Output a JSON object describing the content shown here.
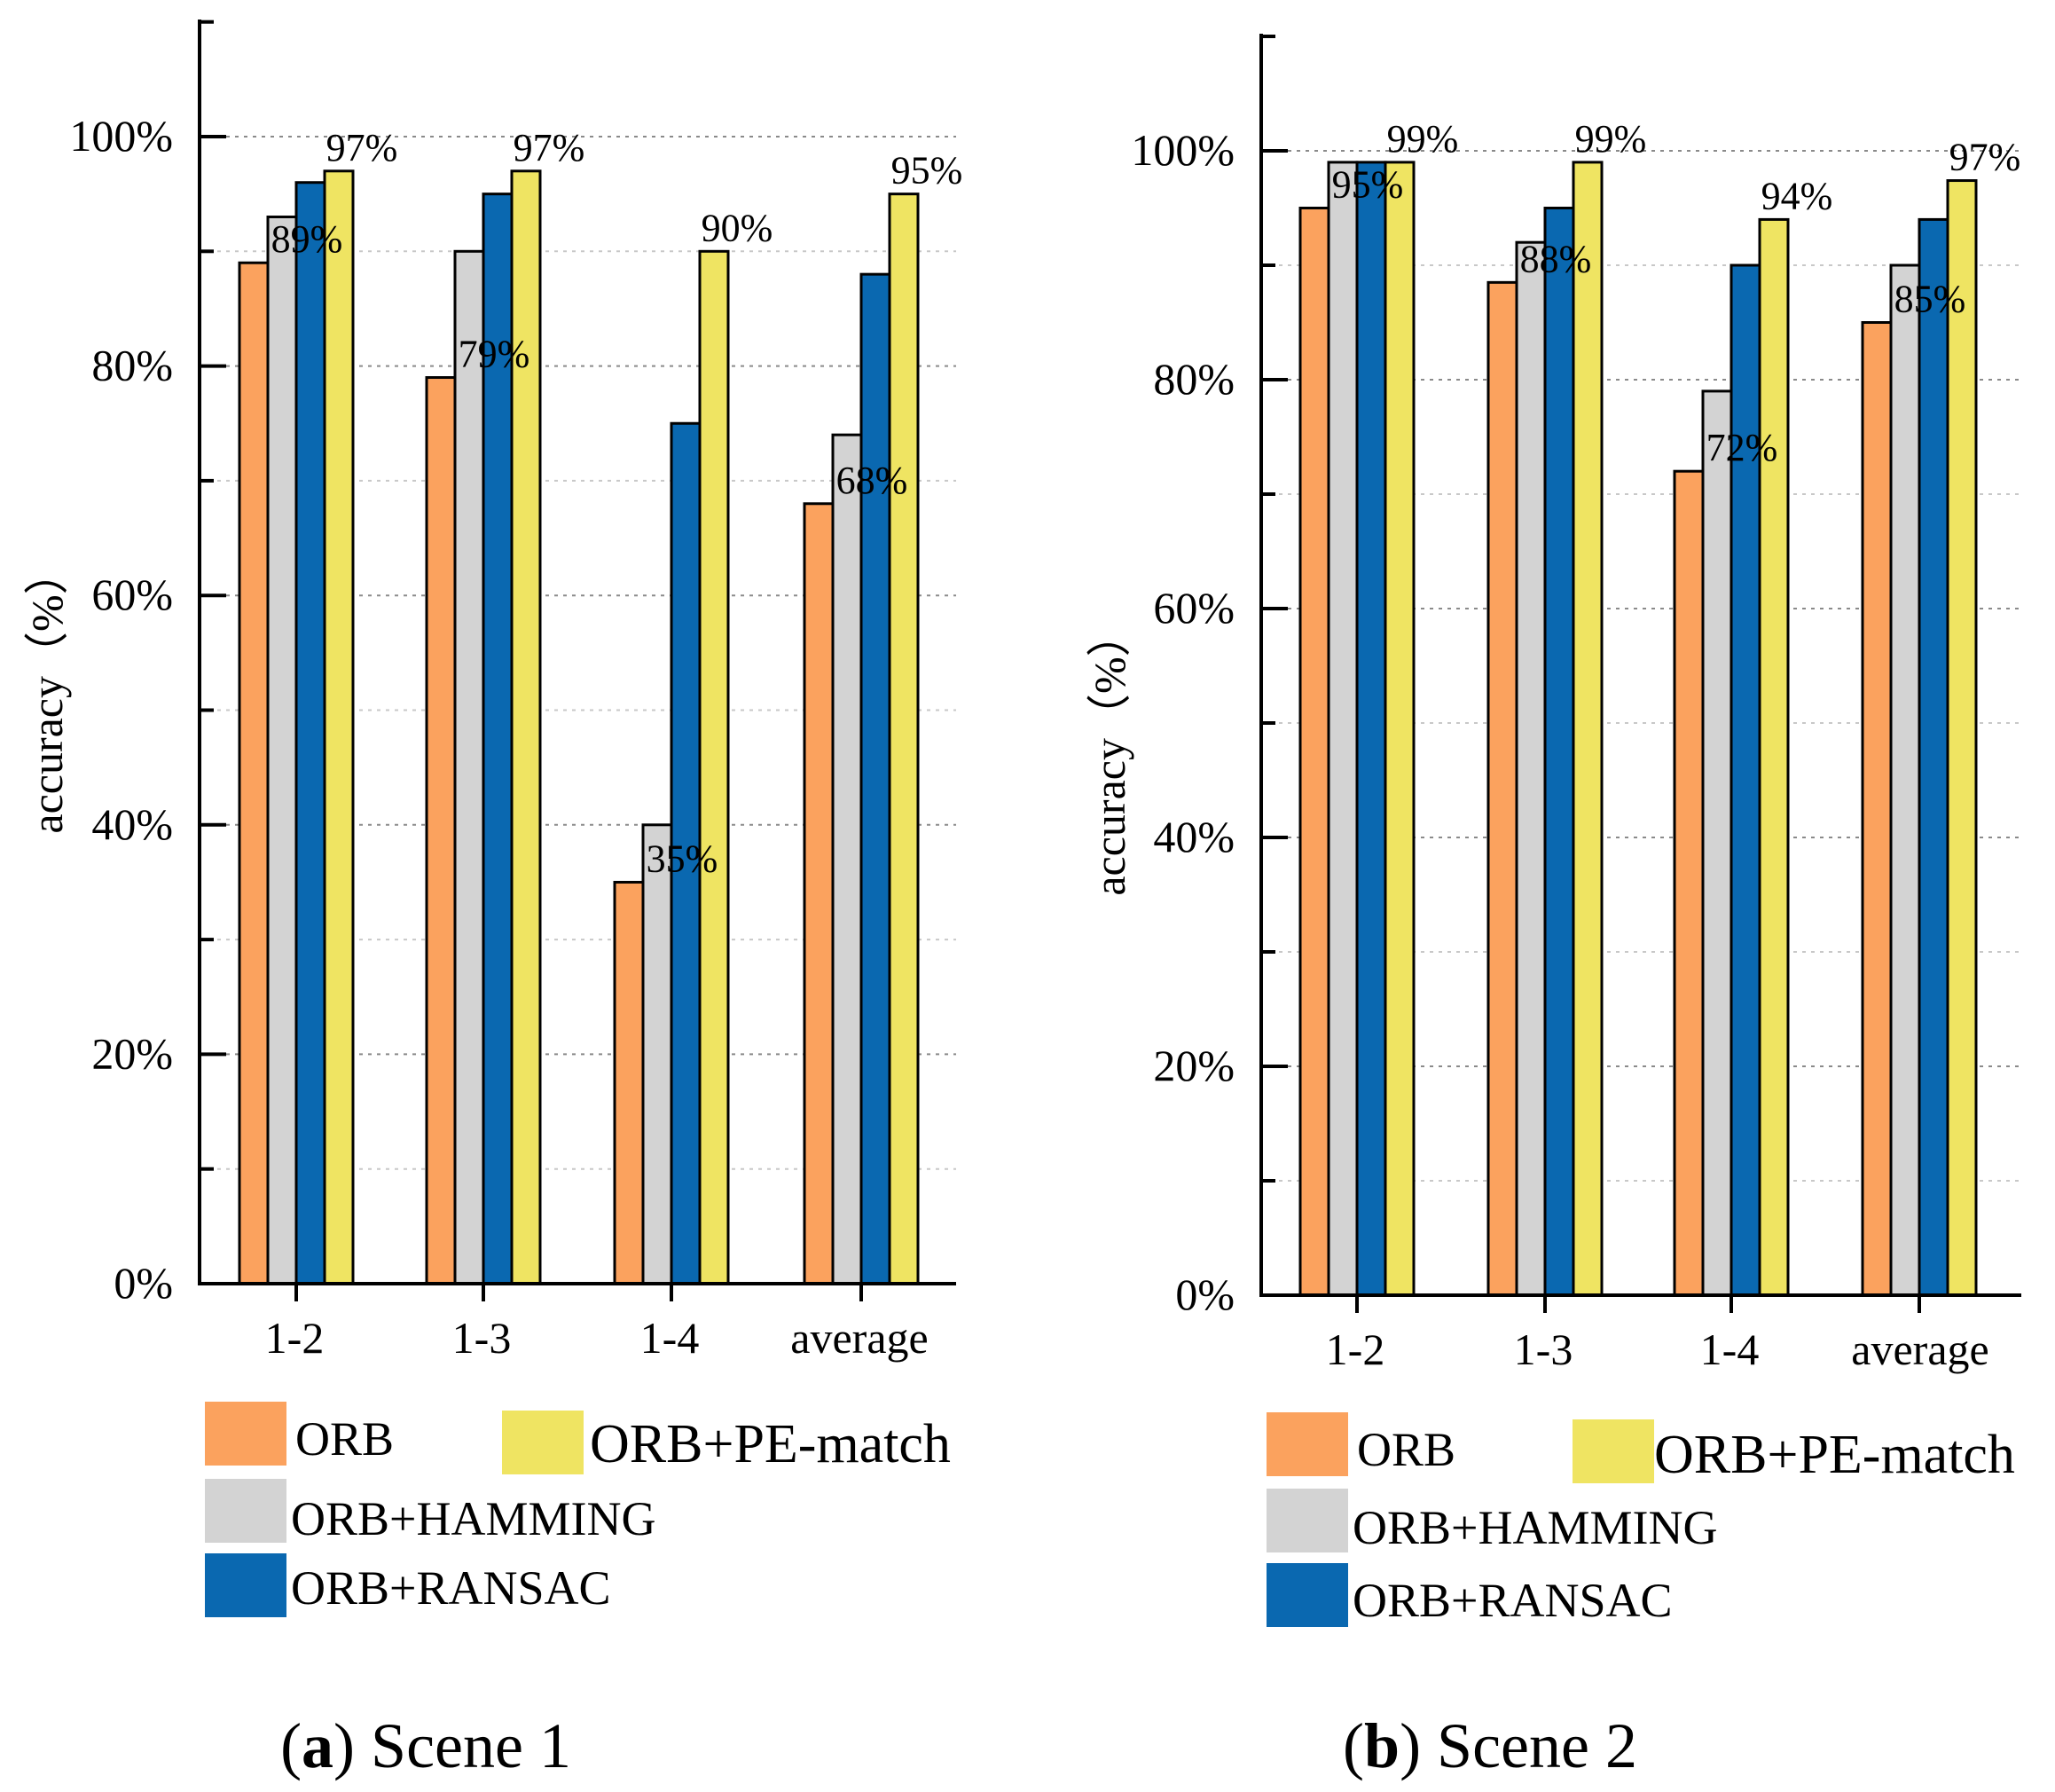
{
  "chart_data": [
    {
      "type": "bar",
      "title": "Scene 1",
      "caption_letter": "(a)",
      "xlabel": "",
      "ylabel": "accuracy（%）",
      "ylim": [
        0,
        110
      ],
      "ytick_values": [
        0,
        20,
        40,
        60,
        80,
        100
      ],
      "ytick_labels": [
        "0%",
        "20%",
        "40%",
        "60%",
        "80%",
        "100%"
      ],
      "grid": true,
      "categories": [
        "1-2",
        "1-3",
        "1-4",
        "average"
      ],
      "series": [
        {
          "name": "ORB",
          "color": "#FBA25E",
          "values": [
            89,
            79,
            35,
            68
          ]
        },
        {
          "name": "ORB+HAMMING",
          "color": "#D3D3D3",
          "values": [
            93,
            90,
            40,
            74
          ]
        },
        {
          "name": "ORB+RANSAC",
          "color": "#0A68B0",
          "values": [
            96,
            95,
            75,
            88
          ]
        },
        {
          "name": "ORB+PE-match",
          "color": "#EFE462",
          "values": [
            97,
            97,
            90,
            95
          ]
        }
      ],
      "data_labels": [
        {
          "series": 0,
          "category": 0,
          "text": "89%"
        },
        {
          "series": 0,
          "category": 1,
          "text": "79%"
        },
        {
          "series": 0,
          "category": 2,
          "text": "35%"
        },
        {
          "series": 0,
          "category": 3,
          "text": "68%"
        },
        {
          "series": 3,
          "category": 0,
          "text": "97%"
        },
        {
          "series": 3,
          "category": 1,
          "text": "97%"
        },
        {
          "series": 3,
          "category": 2,
          "text": "90%"
        },
        {
          "series": 3,
          "category": 3,
          "text": "95%"
        }
      ],
      "legend": [
        {
          "name": "ORB",
          "color": "#FBA25E"
        },
        {
          "name": "ORB+PE-match",
          "color": "#EFE462"
        },
        {
          "name": "ORB+HAMMING",
          "color": "#D3D3D3"
        },
        {
          "name": "ORB+RANSAC",
          "color": "#0A68B0"
        }
      ]
    },
    {
      "type": "bar",
      "title": "Scene 2",
      "caption_letter": "(b)",
      "xlabel": "",
      "ylabel": "accuracy（%）",
      "ylim": [
        0,
        110
      ],
      "ytick_values": [
        0,
        20,
        40,
        60,
        80,
        100
      ],
      "ytick_labels": [
        "0%",
        "20%",
        "40%",
        "60%",
        "80%",
        "100%"
      ],
      "grid": true,
      "categories": [
        "1-2",
        "1-3",
        "1-4",
        "average"
      ],
      "series": [
        {
          "name": "ORB",
          "color": "#FBA25E",
          "values": [
            95,
            88.5,
            72,
            85
          ]
        },
        {
          "name": "ORB+HAMMING",
          "color": "#D3D3D3",
          "values": [
            99,
            92,
            79,
            90
          ]
        },
        {
          "name": "ORB+RANSAC",
          "color": "#0A68B0",
          "values": [
            99,
            95,
            90,
            94
          ]
        },
        {
          "name": "ORB+PE-match",
          "color": "#EFE462",
          "values": [
            99,
            99,
            94,
            97.4
          ]
        }
      ],
      "data_labels": [
        {
          "series": 0,
          "category": 0,
          "text": "95%"
        },
        {
          "series": 0,
          "category": 1,
          "text": "88%"
        },
        {
          "series": 0,
          "category": 2,
          "text": "72%"
        },
        {
          "series": 0,
          "category": 3,
          "text": "85%"
        },
        {
          "series": 3,
          "category": 0,
          "text": "99%"
        },
        {
          "series": 3,
          "category": 1,
          "text": "99%"
        },
        {
          "series": 3,
          "category": 2,
          "text": "94%"
        },
        {
          "series": 3,
          "category": 3,
          "text": "97%"
        }
      ],
      "legend": [
        {
          "name": "ORB",
          "color": "#FBA25E"
        },
        {
          "name": "ORB+PE-match",
          "color": "#EFE462"
        },
        {
          "name": "ORB+HAMMING",
          "color": "#D3D3D3"
        },
        {
          "name": "ORB+RANSAC",
          "color": "#0A68B0"
        }
      ]
    }
  ]
}
